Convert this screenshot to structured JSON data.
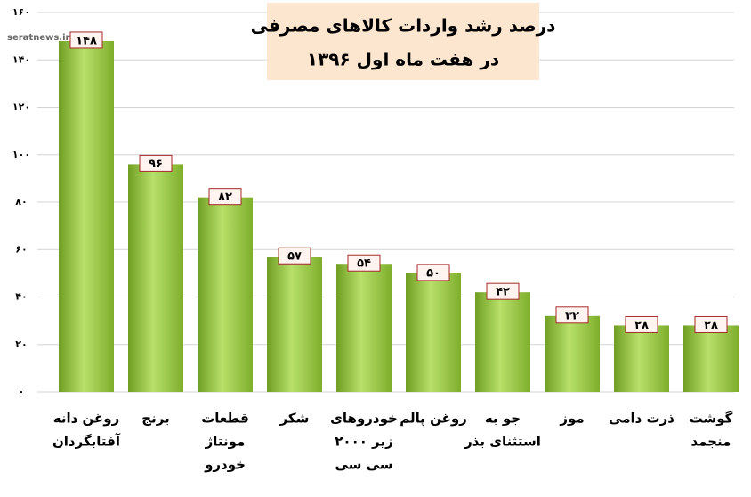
{
  "chart_data": {
    "type": "bar",
    "title": "درصد رشد واردات کالاهای مصرفی",
    "subtitle": "در هفت ماه اول ۱۳۹۶",
    "watermark": "seratnews.ir",
    "categories": [
      [
        "روغن دانه",
        "آفتابگردان"
      ],
      [
        "برنج"
      ],
      [
        "قطعات",
        "مونتاژ",
        "خودرو"
      ],
      [
        "شکر"
      ],
      [
        "خودروهای",
        "زیر ۲۰۰۰",
        "سی سی"
      ],
      [
        "روغن پالم"
      ],
      [
        "جو به",
        "استثنای بذر"
      ],
      [
        "موز"
      ],
      [
        "ذرت دامی"
      ],
      [
        "گوشت",
        "منجمد"
      ]
    ],
    "values": [
      148,
      96,
      82,
      57,
      54,
      50,
      42,
      32,
      28,
      28
    ],
    "value_labels": [
      "۱۴۸",
      "۹۶",
      "۸۲",
      "۵۷",
      "۵۴",
      "۵۰",
      "۴۲",
      "۳۲",
      "۲۸",
      "۲۸"
    ],
    "color": "#92c83e",
    "ylim": [
      0,
      160
    ],
    "yticks": [
      {
        "value": 0,
        "label": "۰"
      },
      {
        "value": 20,
        "label": "۲۰"
      },
      {
        "value": 40,
        "label": "۴۰"
      },
      {
        "value": 60,
        "label": "۶۰"
      },
      {
        "value": 80,
        "label": "۸۰"
      },
      {
        "value": 100,
        "label": "۱۰۰"
      },
      {
        "value": 120,
        "label": "۱۲۰"
      },
      {
        "value": 140,
        "label": "۱۴۰"
      },
      {
        "value": 160,
        "label": "۱۶۰"
      }
    ],
    "grid": true
  }
}
